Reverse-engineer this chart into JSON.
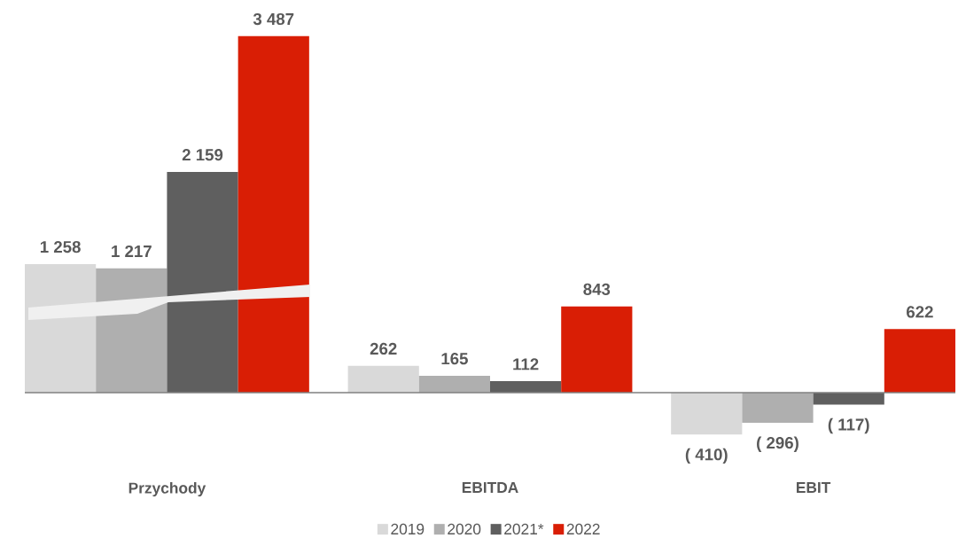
{
  "chart_data": {
    "type": "bar",
    "categories": [
      "Przychody",
      "EBITDA",
      "EBIT"
    ],
    "series": [
      {
        "name": "2019",
        "color": "#d9d9d9",
        "values": [
          1258,
          262,
          -410
        ],
        "value_labels": [
          "1 258",
          "262",
          "( 410)"
        ]
      },
      {
        "name": "2020",
        "color": "#afafaf",
        "values": [
          1217,
          165,
          -296
        ],
        "value_labels": [
          "1 217",
          "165",
          "( 296)"
        ]
      },
      {
        "name": "2021*",
        "color": "#5f5f5f",
        "values": [
          2159,
          112,
          -117
        ],
        "value_labels": [
          "2 159",
          "112",
          "( 117)"
        ]
      },
      {
        "name": "2022",
        "color": "#d91e05",
        "values": [
          3487,
          843,
          622
        ],
        "value_labels": [
          "3 487",
          "843",
          "622"
        ]
      }
    ],
    "legend": "bottom"
  }
}
